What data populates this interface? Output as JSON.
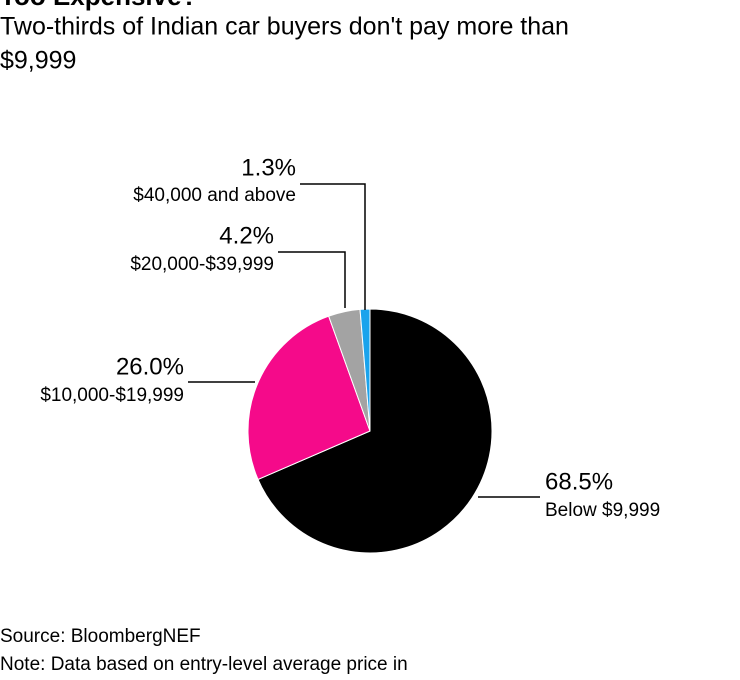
{
  "chart_data": {
    "type": "pie",
    "title": "Too Expensive?",
    "subtitle": [
      "Two-thirds of Indian car buyers don't pay more than",
      "$9,999"
    ],
    "categories": [
      "Below $9,999",
      "$10,000-$19,999",
      "$20,000-$39,999",
      "$40,000 and above"
    ],
    "values": [
      68.5,
      26.0,
      4.2,
      1.3
    ],
    "value_labels": [
      "68.5%",
      "26.0%",
      "4.2%",
      "1.3%"
    ],
    "colors": [
      "#000000",
      "#f50a8a",
      "#a3a3a3",
      "#1aa3ec"
    ],
    "source": "Source: BloombergNEF",
    "note": "Note: Data based on entry-level average price in"
  }
}
